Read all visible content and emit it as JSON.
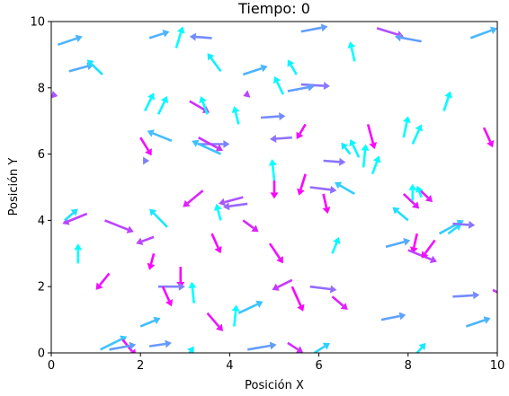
{
  "chart_data": {
    "type": "quiver",
    "title": "Tiempo: 0",
    "xlabel": "Posición X",
    "ylabel": "Posición Y",
    "xlim": [
      0,
      10
    ],
    "ylim": [
      0,
      10
    ],
    "xticks": [
      0,
      2,
      4,
      6,
      8,
      10
    ],
    "yticks": [
      0,
      2,
      4,
      6,
      8,
      10
    ],
    "grid": false,
    "color_scale": "cool",
    "arrows": [
      {
        "x": 0.15,
        "y": 9.3,
        "u": 0.55,
        "v": 0.25
      },
      {
        "x": 0.4,
        "y": 8.5,
        "u": 0.55,
        "v": 0.2
      },
      {
        "x": 1.15,
        "y": 8.4,
        "u": -0.35,
        "v": 0.45
      },
      {
        "x": 0.0,
        "y": 7.8,
        "u": 0.15,
        "v": -0.05
      },
      {
        "x": 2.2,
        "y": 9.5,
        "u": 0.45,
        "v": 0.2
      },
      {
        "x": 2.8,
        "y": 9.2,
        "u": 0.15,
        "v": 0.65
      },
      {
        "x": 3.6,
        "y": 9.5,
        "u": -0.5,
        "v": 0.05
      },
      {
        "x": 3.8,
        "y": 8.5,
        "u": -0.3,
        "v": 0.55
      },
      {
        "x": 4.3,
        "y": 8.4,
        "u": 0.55,
        "v": 0.25
      },
      {
        "x": 5.5,
        "y": 8.4,
        "u": -0.2,
        "v": 0.45
      },
      {
        "x": 5.2,
        "y": 7.8,
        "u": -0.2,
        "v": 0.55
      },
      {
        "x": 5.6,
        "y": 9.7,
        "u": 0.6,
        "v": 0.15
      },
      {
        "x": 5.6,
        "y": 8.1,
        "u": 0.65,
        "v": -0.05
      },
      {
        "x": 6.8,
        "y": 8.8,
        "u": -0.1,
        "v": 0.6
      },
      {
        "x": 7.3,
        "y": 9.8,
        "u": 0.6,
        "v": -0.25
      },
      {
        "x": 8.3,
        "y": 9.4,
        "u": -0.6,
        "v": 0.15
      },
      {
        "x": 9.4,
        "y": 9.5,
        "u": 0.6,
        "v": 0.3
      },
      {
        "x": 2.1,
        "y": 7.3,
        "u": 0.2,
        "v": 0.55
      },
      {
        "x": 2.4,
        "y": 7.2,
        "u": 0.2,
        "v": 0.55
      },
      {
        "x": 3.1,
        "y": 7.6,
        "u": 0.45,
        "v": -0.35
      },
      {
        "x": 3.5,
        "y": 7.2,
        "u": -0.15,
        "v": 0.55
      },
      {
        "x": 4.2,
        "y": 6.9,
        "u": -0.1,
        "v": 0.55
      },
      {
        "x": 4.7,
        "y": 7.1,
        "u": 0.55,
        "v": 0.05
      },
      {
        "x": 4.4,
        "y": 7.8,
        "u": -0.1,
        "v": -0.05
      },
      {
        "x": 5.3,
        "y": 7.9,
        "u": 0.6,
        "v": 0.15
      },
      {
        "x": 5.7,
        "y": 6.9,
        "u": -0.2,
        "v": -0.45
      },
      {
        "x": 5.4,
        "y": 6.5,
        "u": -0.5,
        "v": -0.05
      },
      {
        "x": 2.0,
        "y": 6.5,
        "u": 0.25,
        "v": -0.55
      },
      {
        "x": 2.7,
        "y": 6.4,
        "u": -0.55,
        "v": 0.3
      },
      {
        "x": 3.3,
        "y": 6.3,
        "u": 0.7,
        "v": 0.0
      },
      {
        "x": 3.3,
        "y": 6.5,
        "u": 0.55,
        "v": -0.4
      },
      {
        "x": 3.8,
        "y": 6.0,
        "u": -0.65,
        "v": 0.4
      },
      {
        "x": 5.0,
        "y": 5.2,
        "u": -0.05,
        "v": 0.65
      },
      {
        "x": 3.4,
        "y": 4.9,
        "u": -0.45,
        "v": -0.5
      },
      {
        "x": 4.3,
        "y": 4.7,
        "u": -0.55,
        "v": -0.2
      },
      {
        "x": 4.4,
        "y": 4.5,
        "u": -0.55,
        "v": -0.1
      },
      {
        "x": 3.6,
        "y": 3.6,
        "u": 0.2,
        "v": -0.6
      },
      {
        "x": 3.8,
        "y": 4.0,
        "u": -0.1,
        "v": 0.5
      },
      {
        "x": 2.3,
        "y": 3.5,
        "u": -0.4,
        "v": -0.2
      },
      {
        "x": 2.6,
        "y": 3.8,
        "u": -0.4,
        "v": 0.55
      },
      {
        "x": 0.6,
        "y": 2.7,
        "u": 0.0,
        "v": 0.6
      },
      {
        "x": 0.8,
        "y": 4.2,
        "u": -0.55,
        "v": -0.3
      },
      {
        "x": 0.3,
        "y": 4.0,
        "u": 0.3,
        "v": 0.35
      },
      {
        "x": 1.2,
        "y": 4.0,
        "u": 0.65,
        "v": -0.35
      },
      {
        "x": 1.3,
        "y": 2.4,
        "u": -0.3,
        "v": -0.5
      },
      {
        "x": 2.3,
        "y": 3.0,
        "u": -0.1,
        "v": -0.5
      },
      {
        "x": 2.9,
        "y": 2.6,
        "u": 0.0,
        "v": -0.65
      },
      {
        "x": 2.4,
        "y": 2.0,
        "u": 0.6,
        "v": 0.0
      },
      {
        "x": 2.5,
        "y": 2.0,
        "u": 0.2,
        "v": -0.6
      },
      {
        "x": 3.2,
        "y": 1.5,
        "u": -0.05,
        "v": 0.65
      },
      {
        "x": 3.5,
        "y": 1.2,
        "u": 0.35,
        "v": -0.55
      },
      {
        "x": 4.1,
        "y": 0.8,
        "u": 0.05,
        "v": 0.65
      },
      {
        "x": 4.2,
        "y": 1.2,
        "u": 0.55,
        "v": 0.35
      },
      {
        "x": 4.3,
        "y": 4.0,
        "u": 0.35,
        "v": -0.35
      },
      {
        "x": 4.9,
        "y": 3.3,
        "u": 0.3,
        "v": -0.6
      },
      {
        "x": 5.0,
        "y": 5.2,
        "u": 0.0,
        "v": -0.55
      },
      {
        "x": 5.4,
        "y": 2.2,
        "u": -0.45,
        "v": -0.3
      },
      {
        "x": 5.4,
        "y": 2.0,
        "u": 0.25,
        "v": -0.75
      },
      {
        "x": 5.8,
        "y": 2.0,
        "u": 0.6,
        "v": -0.1
      },
      {
        "x": 6.3,
        "y": 1.7,
        "u": 0.35,
        "v": -0.4
      },
      {
        "x": 5.7,
        "y": 5.4,
        "u": -0.15,
        "v": -0.65
      },
      {
        "x": 5.8,
        "y": 5.0,
        "u": 0.6,
        "v": -0.1
      },
      {
        "x": 6.1,
        "y": 4.8,
        "u": 0.1,
        "v": -0.6
      },
      {
        "x": 6.3,
        "y": 3.0,
        "u": 0.15,
        "v": 0.5
      },
      {
        "x": 6.8,
        "y": 4.8,
        "u": -0.45,
        "v": 0.35
      },
      {
        "x": 6.1,
        "y": 5.8,
        "u": 0.5,
        "v": -0.05
      },
      {
        "x": 6.7,
        "y": 6.0,
        "u": -0.2,
        "v": 0.35
      },
      {
        "x": 6.9,
        "y": 5.9,
        "u": -0.2,
        "v": 0.55
      },
      {
        "x": 7.0,
        "y": 5.6,
        "u": 0.05,
        "v": 0.7
      },
      {
        "x": 7.2,
        "y": 5.4,
        "u": 0.15,
        "v": 0.55
      },
      {
        "x": 7.1,
        "y": 6.9,
        "u": 0.15,
        "v": -0.75
      },
      {
        "x": 7.9,
        "y": 6.5,
        "u": 0.1,
        "v": 0.65
      },
      {
        "x": 8.1,
        "y": 6.3,
        "u": 0.2,
        "v": 0.6
      },
      {
        "x": 8.8,
        "y": 7.3,
        "u": 0.15,
        "v": 0.6
      },
      {
        "x": 9.7,
        "y": 6.8,
        "u": 0.2,
        "v": -0.6
      },
      {
        "x": 7.9,
        "y": 4.8,
        "u": 0.35,
        "v": -0.45
      },
      {
        "x": 8.1,
        "y": 4.6,
        "u": 0.0,
        "v": 0.5
      },
      {
        "x": 8.2,
        "y": 5.0,
        "u": 0.35,
        "v": -0.45
      },
      {
        "x": 8.3,
        "y": 4.7,
        "u": -0.1,
        "v": 0.35
      },
      {
        "x": 8.0,
        "y": 4.0,
        "u": -0.35,
        "v": 0.4
      },
      {
        "x": 8.2,
        "y": 3.6,
        "u": -0.1,
        "v": -0.6
      },
      {
        "x": 7.5,
        "y": 3.2,
        "u": 0.55,
        "v": 0.2
      },
      {
        "x": 8.0,
        "y": 3.1,
        "u": 0.65,
        "v": -0.35
      },
      {
        "x": 8.6,
        "y": 3.4,
        "u": -0.3,
        "v": -0.55
      },
      {
        "x": 8.7,
        "y": 3.6,
        "u": 0.55,
        "v": 0.4
      },
      {
        "x": 8.9,
        "y": 3.6,
        "u": 0.3,
        "v": 0.3
      },
      {
        "x": 9.0,
        "y": 3.9,
        "u": 0.5,
        "v": -0.05
      },
      {
        "x": 9.0,
        "y": 1.7,
        "u": 0.6,
        "v": 0.05
      },
      {
        "x": 9.9,
        "y": 1.9,
        "u": 0.3,
        "v": -0.2
      },
      {
        "x": 9.3,
        "y": 0.8,
        "u": 0.55,
        "v": 0.25
      },
      {
        "x": 7.4,
        "y": 1.0,
        "u": 0.55,
        "v": 0.15
      },
      {
        "x": 8.2,
        "y": 0.0,
        "u": 0.2,
        "v": 0.3
      },
      {
        "x": 1.1,
        "y": 0.1,
        "u": 0.6,
        "v": 0.4
      },
      {
        "x": 1.6,
        "y": 0.4,
        "u": 0.3,
        "v": -0.5
      },
      {
        "x": 1.3,
        "y": 0.1,
        "u": 0.6,
        "v": 0.15
      },
      {
        "x": 2.0,
        "y": 0.8,
        "u": 0.45,
        "v": 0.25
      },
      {
        "x": 2.2,
        "y": 0.2,
        "u": 0.5,
        "v": 0.1
      },
      {
        "x": 3.1,
        "y": 0.0,
        "u": 0.1,
        "v": 0.2
      },
      {
        "x": 4.4,
        "y": 0.1,
        "u": 0.65,
        "v": 0.15
      },
      {
        "x": 5.3,
        "y": 0.3,
        "u": 0.35,
        "v": -0.3
      },
      {
        "x": 5.9,
        "y": 0.0,
        "u": 0.35,
        "v": 0.3
      },
      {
        "x": 2.1,
        "y": 5.8,
        "u": 0.1,
        "v": 0.0
      }
    ]
  }
}
